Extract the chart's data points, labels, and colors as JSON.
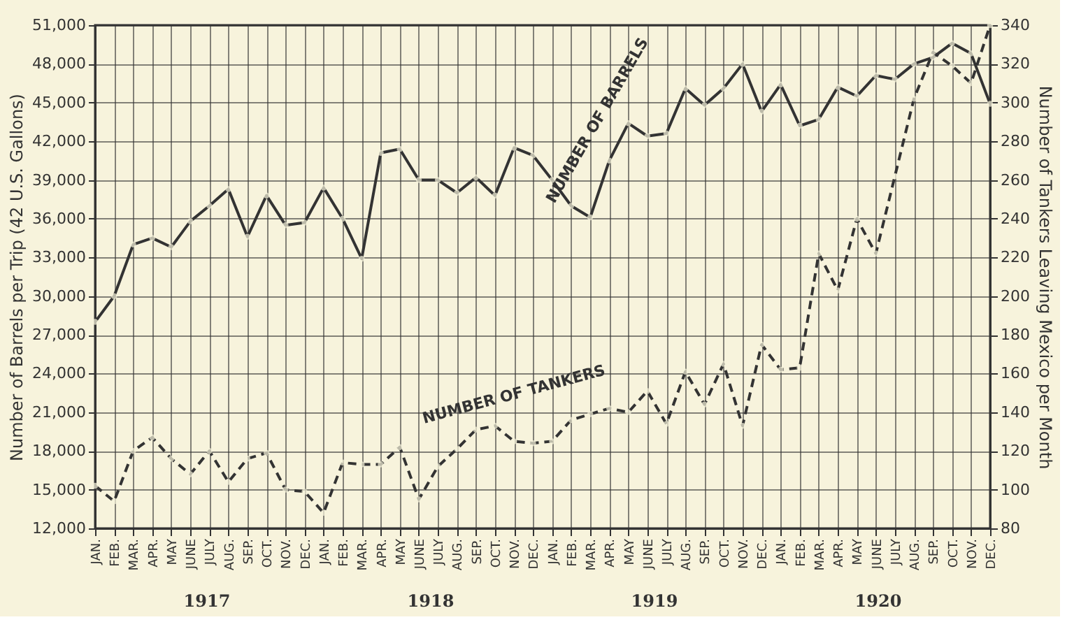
{
  "chart_data": {
    "type": "line",
    "categories": [
      "JAN.",
      "FEB.",
      "MAR.",
      "APR.",
      "MAY",
      "JUNE",
      "JULY",
      "AUG.",
      "SEP.",
      "OCT.",
      "NOV.",
      "DEC.",
      "JAN.",
      "FEB.",
      "MAR.",
      "APR.",
      "MAY",
      "JUNE",
      "JULY",
      "AUG.",
      "SEP.",
      "OCT.",
      "NOV.",
      "DEC.",
      "JAN.",
      "FEB.",
      "MAR.",
      "APR.",
      "MAY",
      "JUNE",
      "JULY",
      "AUG.",
      "SEP.",
      "OCT.",
      "NOV.",
      "DEC.",
      "JAN.",
      "FEB.",
      "MAR.",
      "APR.",
      "MAY",
      "JUNE",
      "JULY",
      "AUG.",
      "SEP.",
      "OCT.",
      "NOV.",
      "DEC."
    ],
    "ylabel": "Number of Barrels per Trip (42 U.S. Gallons)",
    "y2label": "Number of Tankers Leaving Mexico per Month",
    "ylim": [
      12000,
      51000
    ],
    "yticks": [
      {
        "value": 12000,
        "label": "12,000"
      },
      {
        "value": 15000,
        "label": "15,000"
      },
      {
        "value": 18000,
        "label": "18,000"
      },
      {
        "value": 21000,
        "label": "21,000"
      },
      {
        "value": 24000,
        "label": "24,000"
      },
      {
        "value": 27000,
        "label": "27,000"
      },
      {
        "value": 30000,
        "label": "30,000"
      },
      {
        "value": 33000,
        "label": "33,000"
      },
      {
        "value": 36000,
        "label": "36,000"
      },
      {
        "value": 39000,
        "label": "39,000"
      },
      {
        "value": 42000,
        "label": "42,000"
      },
      {
        "value": 45000,
        "label": "45,000"
      },
      {
        "value": 48000,
        "label": "48,000"
      },
      {
        "value": 51000,
        "label": "51,000"
      }
    ],
    "y2lim": [
      80,
      340
    ],
    "y2ticks": [
      80,
      100,
      120,
      140,
      160,
      180,
      200,
      220,
      240,
      260,
      280,
      300,
      320,
      340
    ],
    "series": [
      {
        "color": "#333333",
        "line_style": "solid",
        "values": [
          28000,
          30000,
          34000,
          34500,
          33800,
          35800,
          37000,
          38300,
          34600,
          37800,
          35500,
          35700,
          38400,
          36000,
          32900,
          41100,
          41400,
          39000,
          39000,
          38000,
          39200,
          37800,
          41500,
          40900,
          39000,
          37000,
          36100,
          40500,
          43400,
          42400,
          42600,
          46100,
          44800,
          46100,
          48000,
          44300,
          46400,
          43200,
          43700,
          46200,
          45500,
          47100,
          46800,
          48000,
          48500,
          49600,
          48800,
          44900
        ]
      },
      {
        "color": "#333333",
        "line_style": "dashed",
        "axis": "y2",
        "values": [
          102,
          94,
          120,
          127,
          116,
          108,
          120,
          104,
          116,
          119,
          100,
          99,
          88,
          114,
          113,
          113,
          122,
          95,
          112,
          121,
          131,
          133,
          125,
          124,
          125,
          136,
          139,
          142,
          140,
          151,
          134,
          161,
          144,
          165,
          133,
          175,
          162,
          163,
          222,
          203,
          240,
          222,
          262,
          302,
          326,
          319,
          310,
          340
        ]
      }
    ],
    "annotations": [
      "NUMBER OF BARRELS",
      "NUMBER OF TANKERS",
      "1917",
      "1918",
      "1919",
      "1920"
    ],
    "marker": "circle",
    "grid": true
  }
}
